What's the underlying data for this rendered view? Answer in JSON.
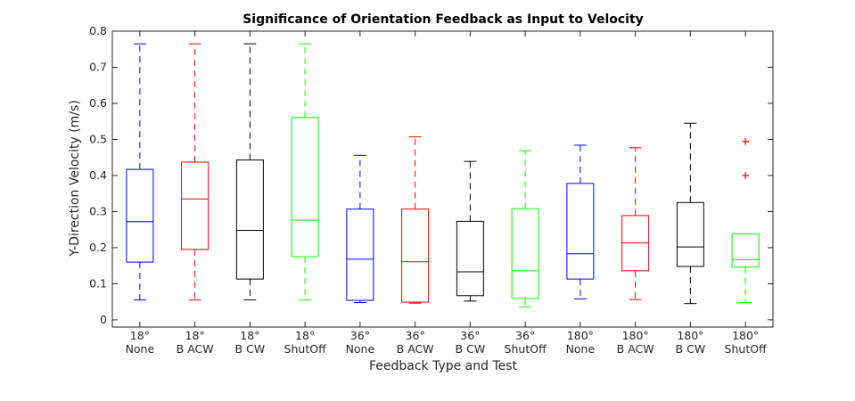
{
  "chart_data": {
    "type": "boxplot",
    "title": "Significance of Orientation Feedback as Input to Velocity",
    "xlabel": "Feedback Type and Test",
    "ylabel": "Y-Direction Velocity (m/s)",
    "ylim": [
      -0.02,
      0.8
    ],
    "yticks": [
      0,
      0.1,
      0.2,
      0.3,
      0.4,
      0.5,
      0.6,
      0.7,
      0.8
    ],
    "ytick_labels": [
      "0",
      "0.1",
      "0.2",
      "0.3",
      "0.4",
      "0.5",
      "0.6",
      "0.7",
      "0.8"
    ],
    "grid": false,
    "categories": [
      {
        "line1": "18°",
        "line2": "None"
      },
      {
        "line1": "18°",
        "line2": "B ACW"
      },
      {
        "line1": "18°",
        "line2": "B CW"
      },
      {
        "line1": "18°",
        "line2": "ShutOff"
      },
      {
        "line1": "36°",
        "line2": "None"
      },
      {
        "line1": "36°",
        "line2": "B ACW"
      },
      {
        "line1": "36°",
        "line2": "B CW"
      },
      {
        "line1": "36°",
        "line2": "ShutOff"
      },
      {
        "line1": "180°",
        "line2": "None"
      },
      {
        "line1": "180°",
        "line2": "B ACW"
      },
      {
        "line1": "180°",
        "line2": "B CW"
      },
      {
        "line1": "180°",
        "line2": "ShutOff"
      }
    ],
    "colors": {
      "None": "#0000ff",
      "B ACW": "#ff0000",
      "B CW": "#000000",
      "ShutOff": "#00ff00"
    },
    "boxes": [
      {
        "min": 0.055,
        "q1": 0.16,
        "median": 0.272,
        "q3": 0.417,
        "max": 0.765,
        "outliers": [],
        "color": "#0000ff"
      },
      {
        "min": 0.055,
        "q1": 0.195,
        "median": 0.335,
        "q3": 0.437,
        "max": 0.765,
        "outliers": [],
        "color": "#ff0000"
      },
      {
        "min": 0.055,
        "q1": 0.113,
        "median": 0.248,
        "q3": 0.443,
        "max": 0.765,
        "outliers": [],
        "color": "#000000"
      },
      {
        "min": 0.055,
        "q1": 0.175,
        "median": 0.276,
        "q3": 0.561,
        "max": 0.765,
        "outliers": [],
        "color": "#00ff00"
      },
      {
        "min": 0.048,
        "q1": 0.054,
        "median": 0.168,
        "q3": 0.307,
        "max": 0.456,
        "outliers": [],
        "color": "#0000ff"
      },
      {
        "min": 0.046,
        "q1": 0.049,
        "median": 0.161,
        "q3": 0.307,
        "max": 0.507,
        "outliers": [],
        "color": "#ff0000"
      },
      {
        "min": 0.052,
        "q1": 0.067,
        "median": 0.133,
        "q3": 0.273,
        "max": 0.439,
        "outliers": [],
        "color": "#000000"
      },
      {
        "min": 0.036,
        "q1": 0.059,
        "median": 0.136,
        "q3": 0.308,
        "max": 0.469,
        "outliers": [],
        "color": "#00ff00"
      },
      {
        "min": 0.058,
        "q1": 0.113,
        "median": 0.183,
        "q3": 0.378,
        "max": 0.484,
        "outliers": [],
        "color": "#0000ff"
      },
      {
        "min": 0.056,
        "q1": 0.136,
        "median": 0.213,
        "q3": 0.289,
        "max": 0.477,
        "outliers": [],
        "color": "#ff0000"
      },
      {
        "min": 0.045,
        "q1": 0.148,
        "median": 0.202,
        "q3": 0.325,
        "max": 0.545,
        "outliers": [],
        "color": "#000000"
      },
      {
        "min": 0.048,
        "q1": 0.146,
        "median": 0.167,
        "q3": 0.238,
        "max": 0.238,
        "outliers": [
          0.4,
          0.494
        ],
        "color": "#00ff00"
      }
    ]
  }
}
